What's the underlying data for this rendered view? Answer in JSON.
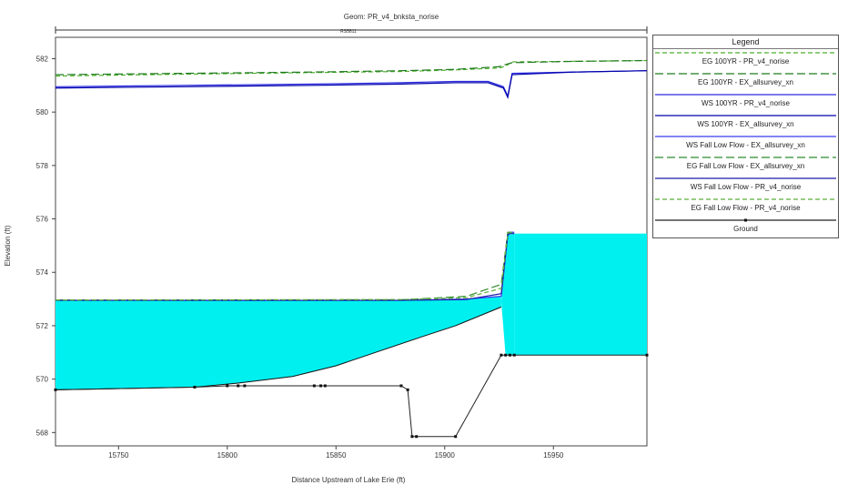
{
  "chart_data": {
    "type": "line",
    "title": "Geom: PR_v4_bnksta_norise",
    "subtitle": "RS5811",
    "xlabel": "Distance Upstream of Lake Erie (ft)",
    "ylabel": "Elevation (ft)",
    "xlim": [
      15721,
      15993
    ],
    "ylim": [
      567.5,
      582.8
    ],
    "x_ticks": [
      15750,
      15800,
      15850,
      15900,
      15950
    ],
    "y_ticks": [
      568,
      570,
      572,
      574,
      576,
      578,
      580,
      582
    ],
    "grid": false,
    "legend_placement": "right",
    "legend_title": "Legend",
    "water_fill_color": "#00f0f0",
    "series": [
      {
        "name": "EG 100YR - PR_v4_norise",
        "color": "#4caf2a",
        "dash": "short",
        "x": [
          15721,
          15780,
          15840,
          15880,
          15905,
          15925,
          15928,
          15931,
          15960,
          15993
        ],
        "y": [
          581.35,
          581.42,
          581.48,
          581.52,
          581.58,
          581.65,
          581.72,
          581.88,
          581.9,
          581.93
        ]
      },
      {
        "name": "EG 100YR - EX_allsurvey_xn",
        "color": "#1f7a1f",
        "dash": "long",
        "x": [
          15721,
          15780,
          15840,
          15880,
          15905,
          15925,
          15928,
          15931,
          15960,
          15993
        ],
        "y": [
          581.4,
          581.45,
          581.5,
          581.55,
          581.6,
          581.7,
          581.78,
          581.85,
          581.9,
          581.93
        ]
      },
      {
        "name": "WS 100YR - PR_v4_norise",
        "color": "#2a2ae0",
        "dash": "solid",
        "x": [
          15721,
          15780,
          15840,
          15880,
          15905,
          15920,
          15927,
          15929,
          15931,
          15960,
          15993
        ],
        "y": [
          580.95,
          581.0,
          581.05,
          581.1,
          581.15,
          581.15,
          580.95,
          580.6,
          581.45,
          581.5,
          581.55
        ]
      },
      {
        "name": "WS 100YR - EX_allsurvey_xn",
        "color": "#0000aa",
        "dash": "solid",
        "x": [
          15721,
          15780,
          15840,
          15880,
          15905,
          15920,
          15927,
          15929,
          15931,
          15960,
          15993
        ],
        "y": [
          580.9,
          580.95,
          581.0,
          581.05,
          581.1,
          581.1,
          580.9,
          580.55,
          581.4,
          581.5,
          581.55
        ]
      },
      {
        "name": "WS Fall Low Flow - EX_allsurvey_xn",
        "color": "#3a3aee",
        "dash": "solid",
        "x": [
          15721,
          15880,
          15910,
          15926,
          15929,
          15930,
          15932
        ],
        "y": [
          572.95,
          572.95,
          573.0,
          573.1,
          575.4,
          575.5,
          575.5
        ]
      },
      {
        "name": "EG Fall Low Flow - EX_allsurvey_xn",
        "color": "#2e8b2e",
        "dash": "long",
        "x": [
          15721,
          15880,
          15910,
          15926,
          15929,
          15930,
          15932
        ],
        "y": [
          572.96,
          572.97,
          573.1,
          573.55,
          575.5,
          575.5,
          575.45
        ]
      },
      {
        "name": "WS Fall Low Flow - PR_v4_norise",
        "color": "#1a1aa8",
        "dash": "solid",
        "x": [
          15721,
          15880,
          15910,
          15926,
          15929,
          15930,
          15932
        ],
        "y": [
          572.95,
          572.95,
          572.98,
          573.2,
          575.4,
          575.45,
          575.45
        ]
      },
      {
        "name": "EG Fall Low Flow - PR_v4_norise",
        "color": "#5cae3c",
        "dash": "short",
        "x": [
          15721,
          15880,
          15910,
          15926,
          15929,
          15930,
          15932
        ],
        "y": [
          572.96,
          572.98,
          573.05,
          573.4,
          575.45,
          575.5,
          575.45
        ]
      },
      {
        "name": "Ground",
        "color": "#222222",
        "dash": "solid",
        "markers": true,
        "x": [
          15721,
          15785,
          15800,
          15805,
          15808,
          15840,
          15843,
          15845,
          15880,
          15883,
          15885,
          15887,
          15905,
          15926,
          15928,
          15930,
          15932,
          15993
        ],
        "y": [
          569.6,
          569.7,
          569.75,
          569.75,
          569.75,
          569.75,
          569.75,
          569.75,
          569.75,
          569.6,
          567.85,
          567.85,
          567.85,
          570.9,
          570.9,
          570.9,
          570.9,
          570.9
        ]
      }
    ]
  }
}
